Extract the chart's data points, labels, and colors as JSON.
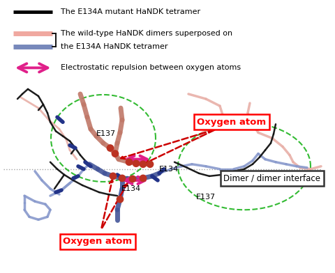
{
  "fig_width": 4.8,
  "fig_height": 3.92,
  "dpi": 100,
  "bg_color": "#ffffff",
  "legend": {
    "black_line_label": "The E134A mutant HaNDK tetramer",
    "pink_line_label1": "The wild-type HaNDK dimers superposed on",
    "pink_line_label2": "the E134A HaNDK tetramer",
    "arrow_label": "Electrostatic repulsion between oxygen atoms",
    "line1_color": "#000000",
    "line2a_color": "#f0a8a0",
    "line2b_color": "#7788bb",
    "arrow_color": "#e0208a"
  },
  "mol": {
    "dimer_interface_label": "Dimer / dimer interface",
    "oxygen_atom_label_top": "Oxygen atom",
    "oxygen_atom_label_bot": "Oxygen atom",
    "e137_top": "E137",
    "e134_top": "E134",
    "e134_bot": "E134",
    "e137_bot": "E137",
    "pink_arrow_color": "#e0208a",
    "red_dashed_color": "#cc0000",
    "green_dashed_color": "#00aa00",
    "gray_dot_color": "#999999",
    "salmon_color": "#e8b0a8",
    "salmon_dark": "#c07868",
    "blue_color": "#8899cc",
    "blue_dark": "#445599",
    "dark_color": "#111111",
    "red_ball_color": "#bb3322",
    "navy_color": "#223388"
  }
}
